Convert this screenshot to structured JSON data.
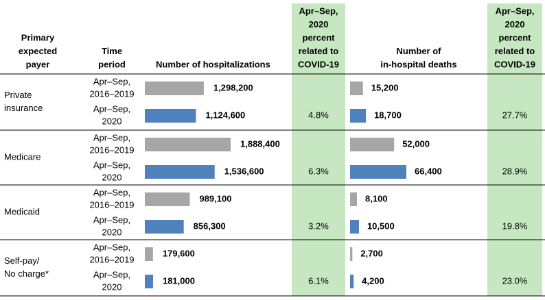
{
  "header": {
    "payer": [
      "Primary",
      "expected",
      "payer"
    ],
    "period": [
      "Time",
      "period"
    ],
    "hospitalizations": "Number of hospitalizations",
    "hospitalizations_pct": [
      "Apr–Sep,",
      "2020",
      "percent",
      "related to",
      "COVID-19"
    ],
    "deaths": [
      "Number of",
      "in-hospital deaths"
    ],
    "deaths_pct": [
      "Apr–Sep,",
      "2020",
      "percent",
      "related to",
      "COVID-19"
    ]
  },
  "colors": {
    "baseline": "#a6a6a6",
    "current": "#4f81bd",
    "highlight": "#c6e7c1"
  },
  "rows": [
    {
      "payer": [
        "Private",
        "insurance"
      ],
      "periods": [
        [
          "Apr–Sep,",
          "2016–2019"
        ],
        [
          "Apr–Sep,",
          "2020"
        ]
      ],
      "hospitalizations": [
        1298200,
        1124600
      ],
      "hospitalizations_labels": [
        "1,298,200",
        "1,124,600"
      ],
      "deaths": [
        15200,
        18700
      ],
      "deaths_labels": [
        "15,200",
        "18,700"
      ],
      "hospitalizations_pct": "4.8%",
      "deaths_pct": "27.7%"
    },
    {
      "payer": [
        "Medicare"
      ],
      "periods": [
        [
          "Apr–Sep,",
          "2016–2019"
        ],
        [
          "Apr–Sep,",
          "2020"
        ]
      ],
      "hospitalizations": [
        1888400,
        1536600
      ],
      "hospitalizations_labels": [
        "1,888,400",
        "1,536,600"
      ],
      "deaths": [
        52000,
        66400
      ],
      "deaths_labels": [
        "52,000",
        "66,400"
      ],
      "hospitalizations_pct": "6.3%",
      "deaths_pct": "28.9%"
    },
    {
      "payer": [
        "Medicaid"
      ],
      "periods": [
        [
          "Apr–Sep,",
          "2016–2019"
        ],
        [
          "Apr–Sep,",
          "2020"
        ]
      ],
      "hospitalizations": [
        989100,
        856300
      ],
      "hospitalizations_labels": [
        "989,100",
        "856,300"
      ],
      "deaths": [
        8100,
        10500
      ],
      "deaths_labels": [
        "8,100",
        "10,500"
      ],
      "hospitalizations_pct": "3.2%",
      "deaths_pct": "19.8%"
    },
    {
      "payer": [
        "Self-pay/",
        "No charge*"
      ],
      "periods": [
        [
          "Apr–Sep,",
          "2016–2019"
        ],
        [
          "Apr–Sep,",
          "2020"
        ]
      ],
      "hospitalizations": [
        179600,
        181000
      ],
      "hospitalizations_labels": [
        "179,600",
        "181,000"
      ],
      "deaths": [
        2700,
        4200
      ],
      "deaths_labels": [
        "2,700",
        "4,200"
      ],
      "hospitalizations_pct": "6.1%",
      "deaths_pct": "23.0%"
    }
  ]
}
